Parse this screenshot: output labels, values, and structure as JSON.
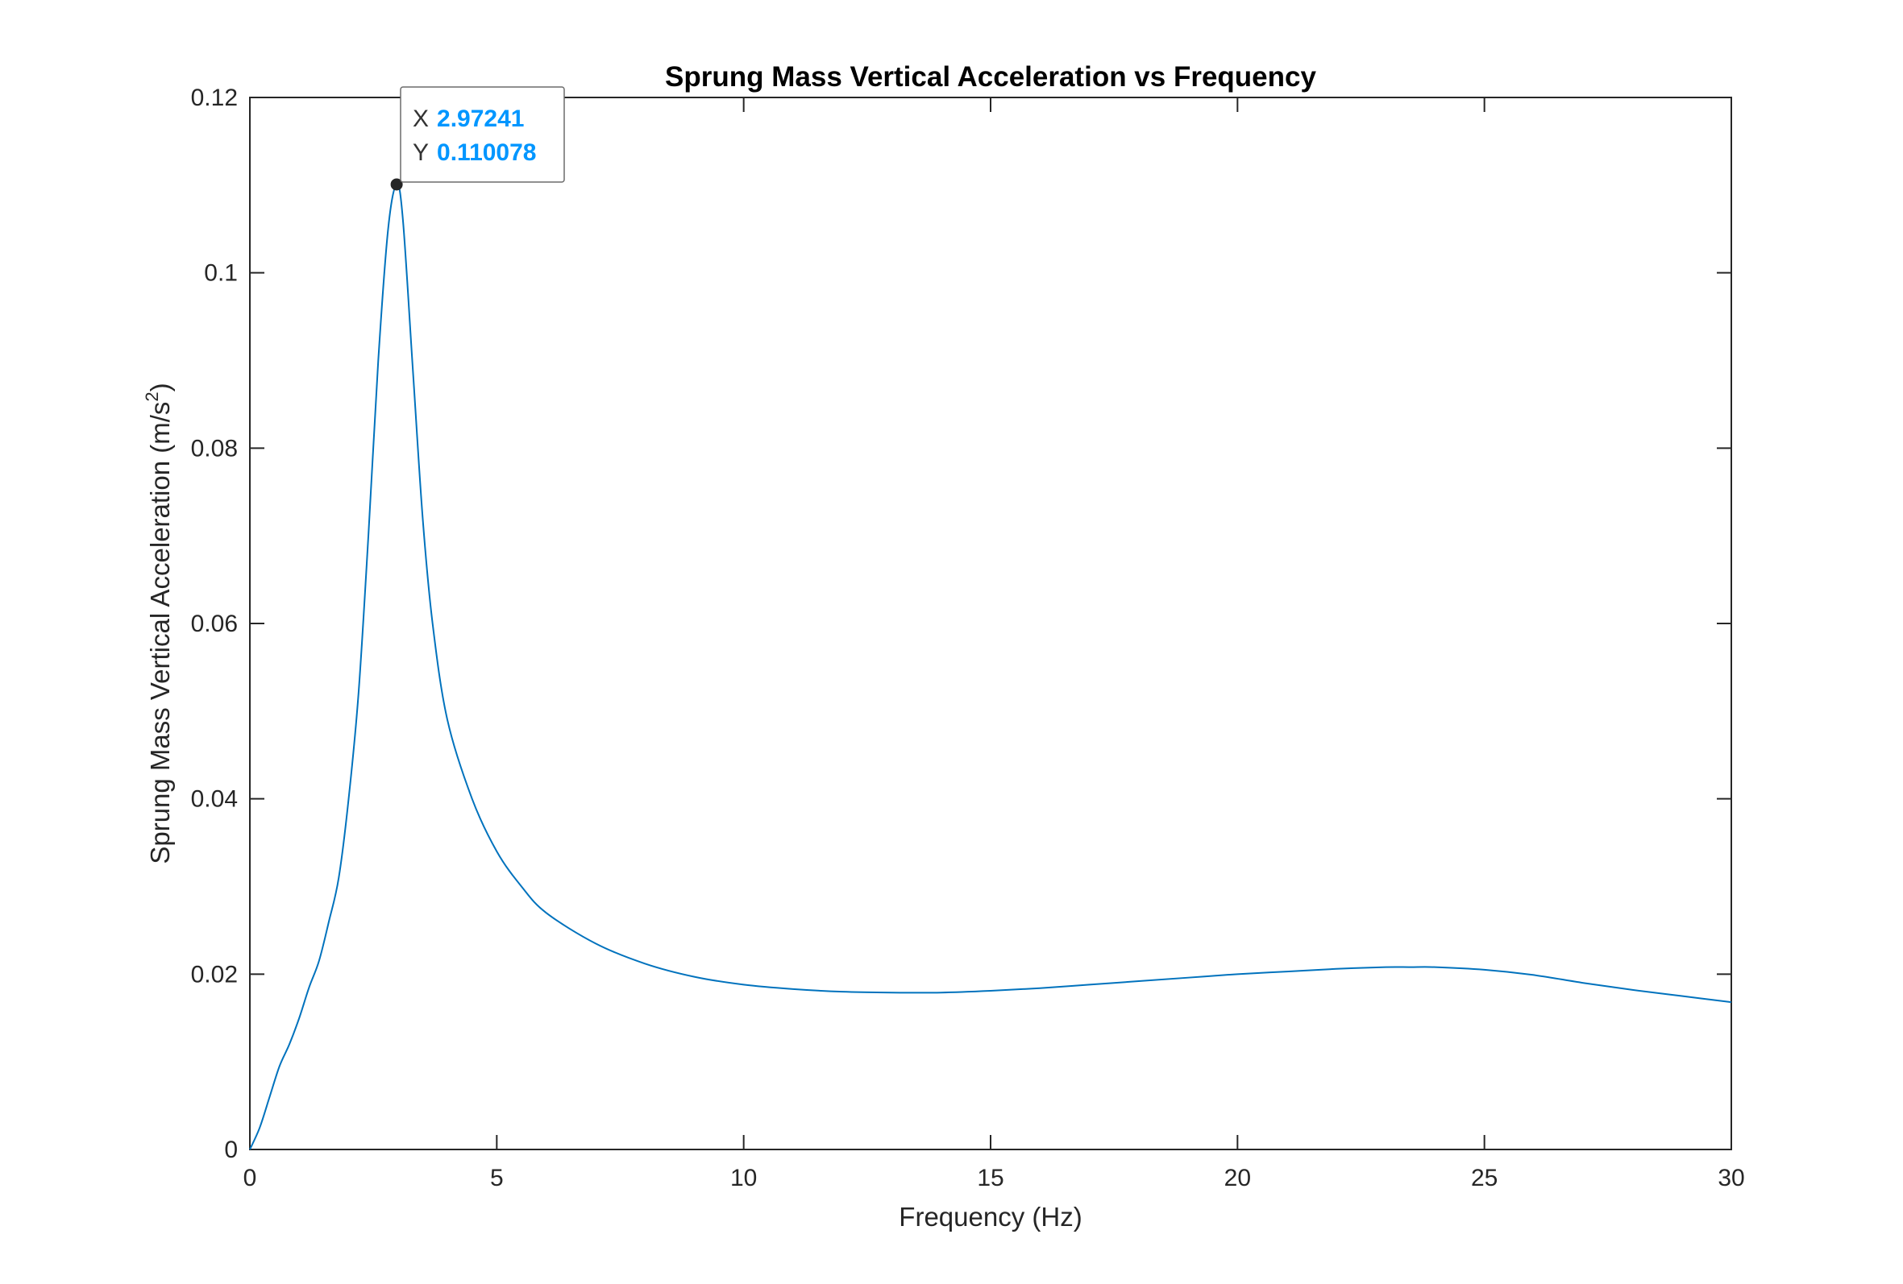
{
  "chart_data": {
    "type": "line",
    "title": "Sprung Mass Vertical Acceleration vs Frequency",
    "xlabel": "Frequency (Hz)",
    "ylabel_main": "Sprung Mass Vertical Acceleration (m/s",
    "ylabel_sup": "2",
    "ylabel_close": ")",
    "xlim": [
      0,
      30
    ],
    "ylim": [
      0,
      0.12
    ],
    "x_ticks": [
      0,
      5,
      10,
      15,
      20,
      25,
      30
    ],
    "x_tick_labels": [
      "0",
      "5",
      "10",
      "15",
      "20",
      "25",
      "30"
    ],
    "y_ticks": [
      0,
      0.02,
      0.04,
      0.06,
      0.08,
      0.1,
      0.12
    ],
    "y_tick_labels": [
      "0",
      "0.02",
      "0.04",
      "0.06",
      "0.08",
      "0.1",
      "0.12"
    ],
    "grid": false,
    "line_color": "#0072BD",
    "series": [
      {
        "x": [
          0,
          0.2,
          0.4,
          0.6,
          0.8,
          1.0,
          1.2,
          1.4,
          1.6,
          1.8,
          2.0,
          2.2,
          2.4,
          2.6,
          2.8,
          2.97241,
          3.1,
          3.3,
          3.5,
          3.7,
          4.0,
          4.5,
          5.0,
          5.5,
          6.0,
          7.0,
          8.0,
          9.0,
          10.0,
          11.0,
          12.0,
          13.0,
          14.0,
          15.0,
          16.0,
          17.0,
          18.0,
          19.0,
          20.0,
          21.0,
          22.0,
          23.0,
          23.5,
          24.0,
          25.0,
          26.0,
          27.0,
          28.0,
          29.0,
          30.0
        ],
        "y": [
          0,
          0.0025,
          0.006,
          0.0095,
          0.012,
          0.015,
          0.0185,
          0.0215,
          0.026,
          0.031,
          0.04,
          0.052,
          0.07,
          0.09,
          0.105,
          0.110078,
          0.106,
          0.089,
          0.072,
          0.06,
          0.049,
          0.04,
          0.034,
          0.03,
          0.027,
          0.0235,
          0.0212,
          0.0197,
          0.0188,
          0.0183,
          0.018,
          0.0179,
          0.0179,
          0.0181,
          0.0184,
          0.0188,
          0.0192,
          0.0196,
          0.02,
          0.0203,
          0.0206,
          0.0208,
          0.0208,
          0.0208,
          0.0205,
          0.0199,
          0.019,
          0.0182,
          0.0175,
          0.0168
        ]
      }
    ],
    "datatip": {
      "x_key": "X",
      "x_value": "2.97241",
      "y_key": "Y",
      "y_value": "0.110078",
      "x": 2.97241,
      "y": 0.110078,
      "value_color": "#0096FF"
    }
  }
}
